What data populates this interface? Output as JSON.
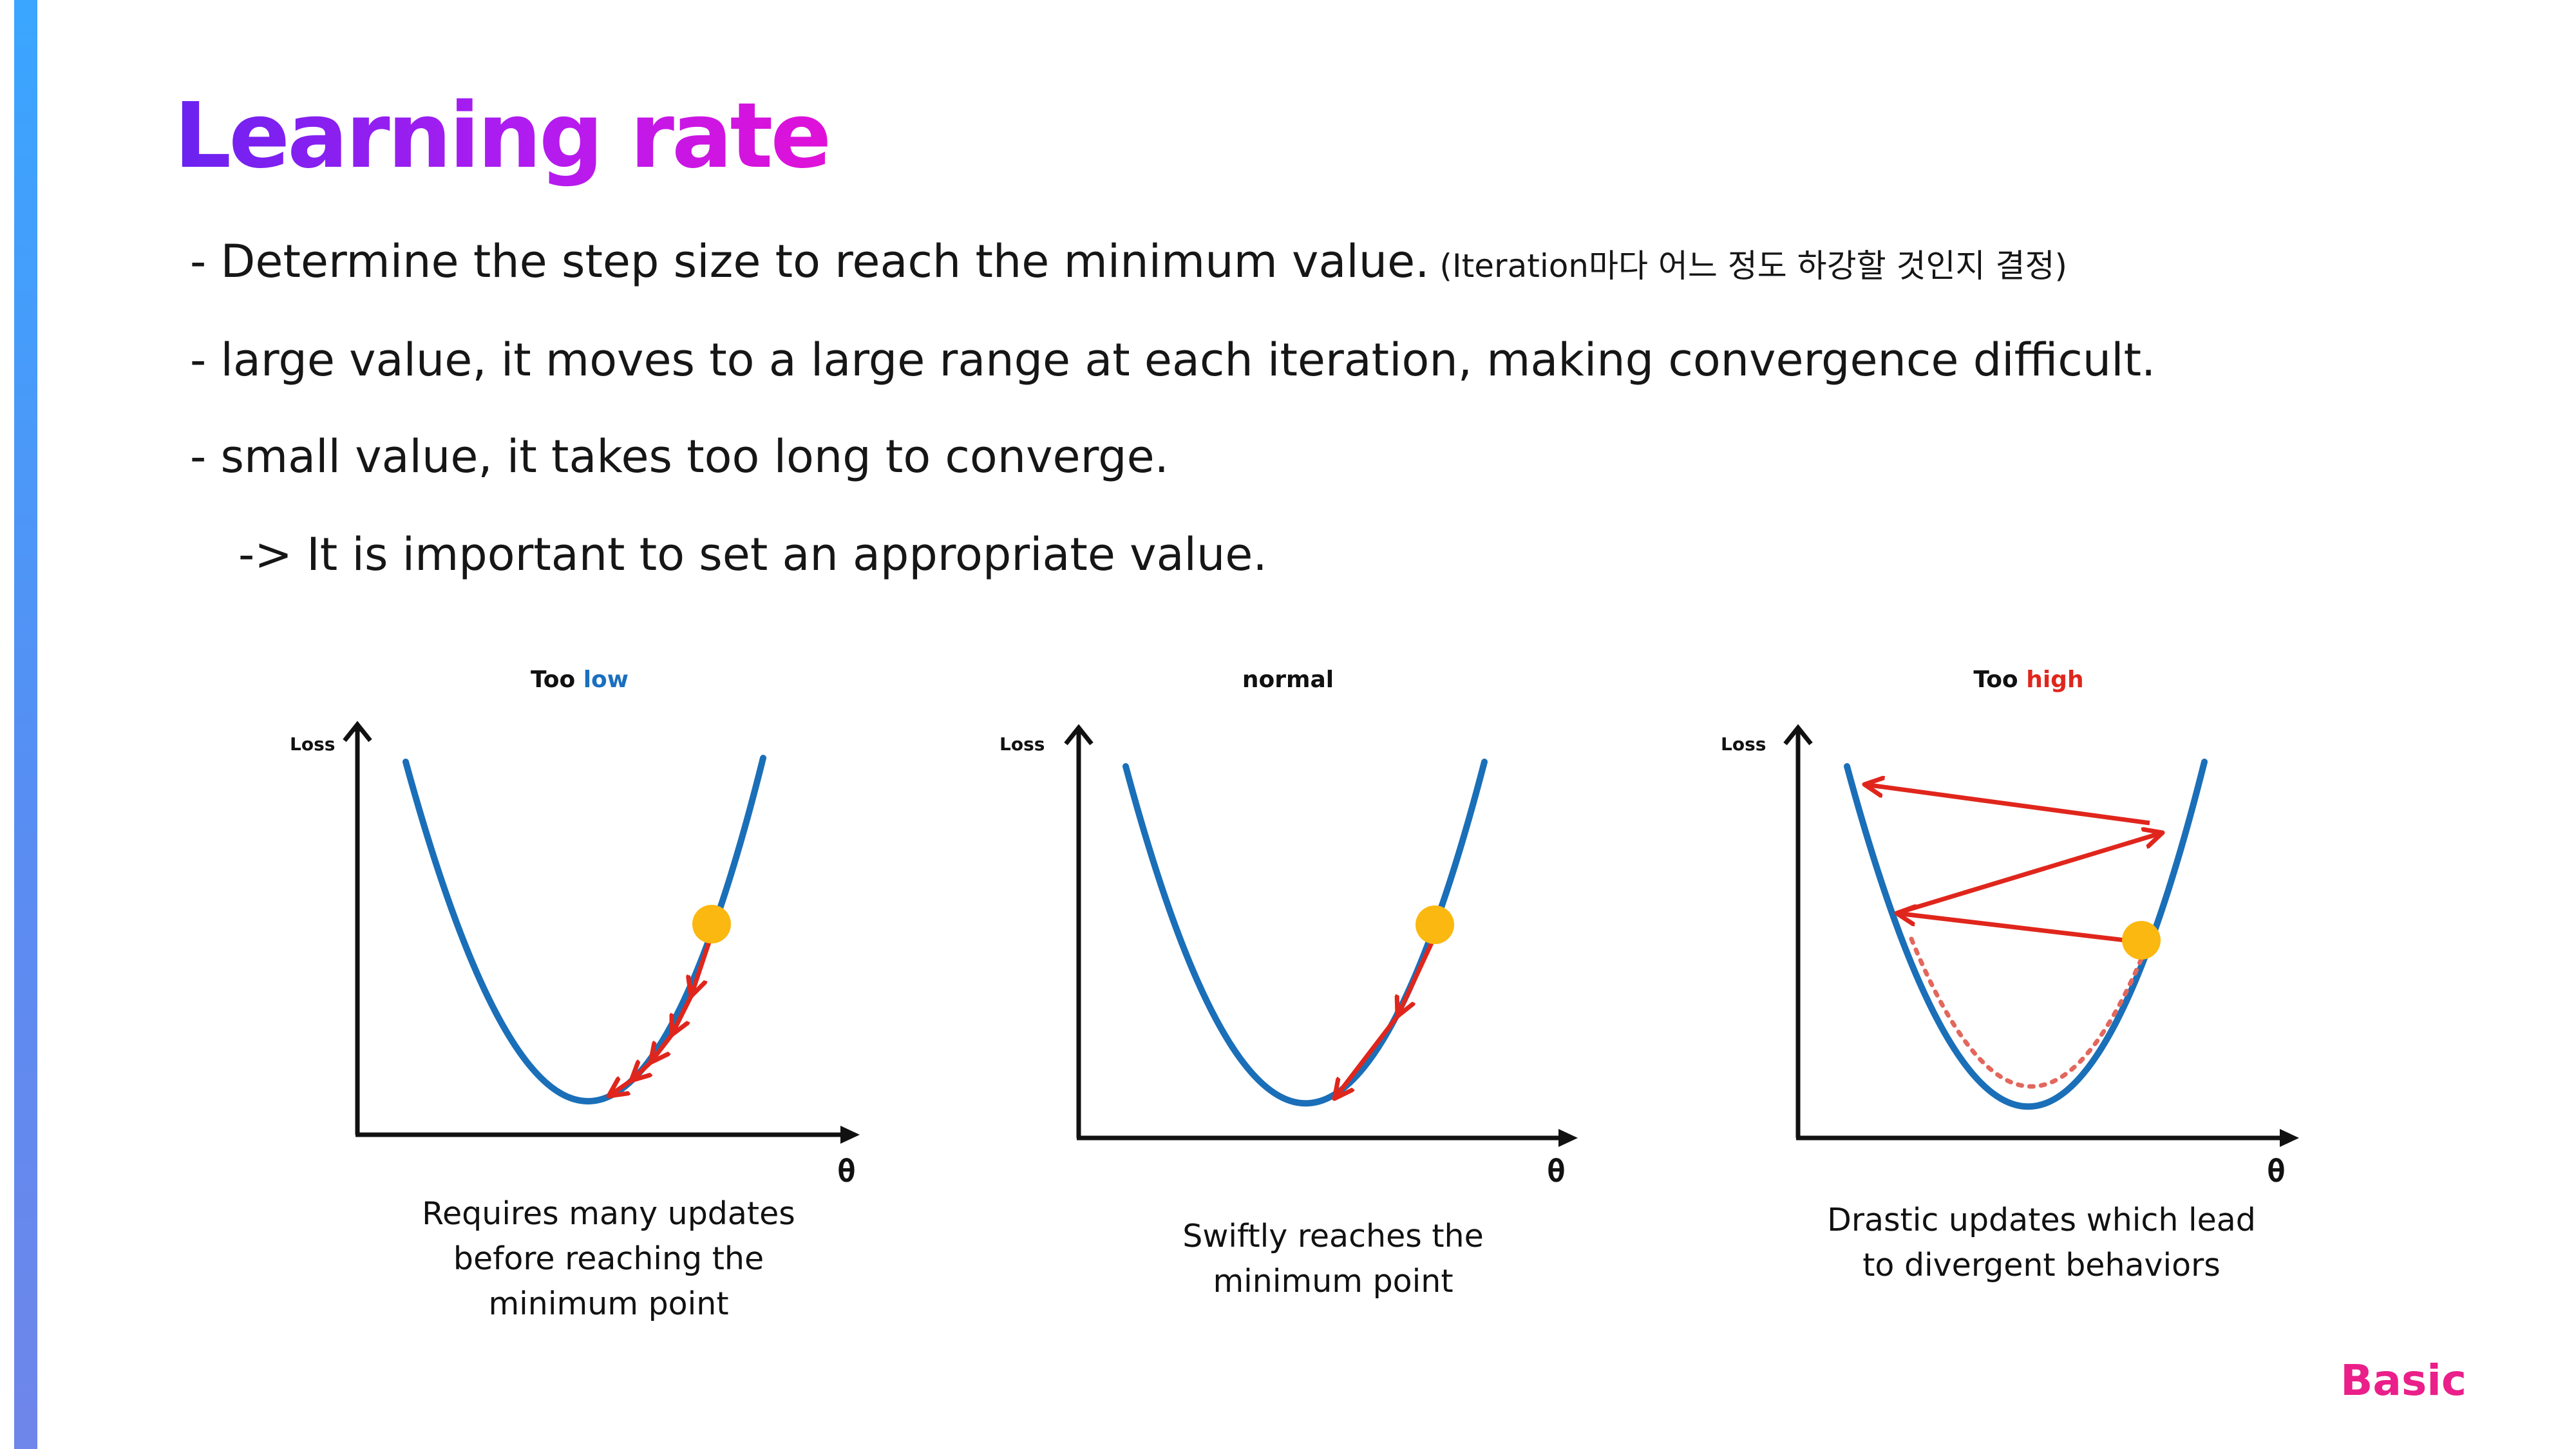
{
  "slide": {
    "title": "Learning rate",
    "bullets": [
      {
        "text": "- Determine the step size to reach the minimum value.",
        "note": " (Iteration마다 어느 정도 하강할 것인지 결정)"
      },
      {
        "text": "- large value, it moves to a large range at each iteration, making convergence difficult."
      },
      {
        "text": "- small value, it takes too long to converge."
      }
    ],
    "conclusion": "-> It is important to set an appropriate value.",
    "badge": "Basic"
  },
  "panels": [
    {
      "title_prefix": "Too ",
      "title_highlight": "low",
      "highlight_color": "#1a6fc0",
      "ylabel": "Loss",
      "xlabel": "θ",
      "caption": [
        "Requires many updates",
        "before reaching the",
        "minimum point"
      ]
    },
    {
      "title_prefix": "normal",
      "title_highlight": "",
      "highlight_color": "#111111",
      "ylabel": "Loss",
      "xlabel": "θ",
      "caption": [
        "Swiftly reaches the",
        "minimum point"
      ]
    },
    {
      "title_prefix": "Too ",
      "title_highlight": "high",
      "highlight_color": "#e0261c",
      "ylabel": "Loss",
      "xlabel": "θ",
      "caption": [
        "Drastic updates which lead",
        "to divergent behaviors"
      ]
    }
  ],
  "colors": {
    "curve": "#1a6fb8",
    "arrow": "#e0261c",
    "ball": "#fbb810",
    "dotted": "#e2675d"
  }
}
